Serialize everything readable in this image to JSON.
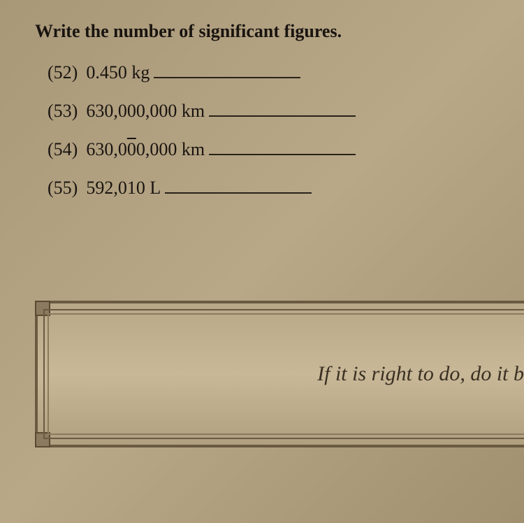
{
  "instruction": "Write the number of significant figures.",
  "problems": [
    {
      "num": "(52)",
      "value": "0.450 kg"
    },
    {
      "num": "(53)",
      "value": "630,000,000 km"
    },
    {
      "num": "(54)",
      "value_pre": "630,0",
      "value_over": "0",
      "value_post": "0,000 km"
    },
    {
      "num": "(55)",
      "value": "592,010 L"
    }
  ],
  "quote": "If it is right to do, do it b",
  "styling": {
    "page_bg": "#b0a080",
    "text_color": "#1a1410",
    "instruction_fontsize": 26,
    "problem_fontsize": 26,
    "blank_width": 210,
    "blank_border_color": "#2a2218",
    "frame_border_color": "#6b5a42",
    "frame_inner_border_color": "#8b7a5e",
    "corner_bg": "#8b7a5e",
    "quote_fontsize": 30,
    "quote_color": "#3a3022",
    "font_family": "Georgia, Times New Roman, serif",
    "quote_font_family": "Brush Script MT, cursive"
  }
}
